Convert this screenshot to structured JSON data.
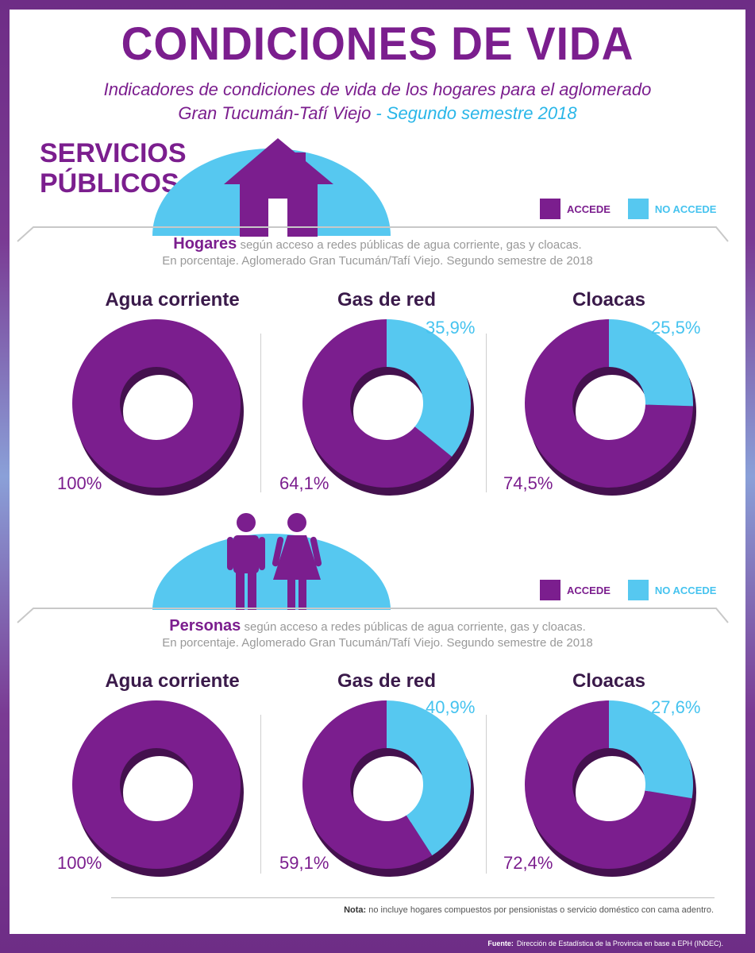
{
  "header": {
    "title": "CONDICIONES DE VIDA",
    "subtitle_line1": "Indicadores de condiciones de vida de los hogares para el aglomerado",
    "subtitle_line2_a": "Gran Tucumán-Tafí Viejo",
    "subtitle_line2_sep": " - ",
    "subtitle_line2_b": "Segundo semestre 2018"
  },
  "section": {
    "title_line1": "SERVICIOS",
    "title_line2": "PÚBLICOS"
  },
  "legend": {
    "accede": "ACCEDE",
    "no_accede": "NO ACCEDE"
  },
  "colors": {
    "accede": "#7b1e8e",
    "no_accede": "#56c8f0",
    "accent": "#7b1e8e"
  },
  "hogares": {
    "heading": "Hogares",
    "desc1": " según acceso a redes públicas de agua corriente, gas y cloacas.",
    "desc2": "En porcentaje. Aglomerado Gran Tucumán/Tafí Viejo. Segundo semestre de 2018"
  },
  "personas": {
    "heading": "Personas",
    "desc1": " según acceso a redes públicas de agua corriente, gas y cloacas.",
    "desc2": "En porcentaje. Aglomerado Gran Tucumán/Tafí Viejo. Segundo semestre de 2018"
  },
  "chart_data": [
    {
      "type": "pie",
      "group": "Hogares",
      "title": "Agua corriente",
      "categories": [
        "ACCEDE",
        "NO ACCEDE"
      ],
      "values": [
        100,
        0
      ],
      "labels": [
        "100%",
        ""
      ]
    },
    {
      "type": "pie",
      "group": "Hogares",
      "title": "Gas de red",
      "categories": [
        "ACCEDE",
        "NO ACCEDE"
      ],
      "values": [
        64.1,
        35.9
      ],
      "labels": [
        "64,1%",
        "35,9%"
      ]
    },
    {
      "type": "pie",
      "group": "Hogares",
      "title": "Cloacas",
      "categories": [
        "ACCEDE",
        "NO ACCEDE"
      ],
      "values": [
        74.5,
        25.5
      ],
      "labels": [
        "74,5%",
        "25,5%"
      ]
    },
    {
      "type": "pie",
      "group": "Personas",
      "title": "Agua corriente",
      "categories": [
        "ACCEDE",
        "NO ACCEDE"
      ],
      "values": [
        100,
        0
      ],
      "labels": [
        "100%",
        ""
      ]
    },
    {
      "type": "pie",
      "group": "Personas",
      "title": "Gas de red",
      "categories": [
        "ACCEDE",
        "NO ACCEDE"
      ],
      "values": [
        59.1,
        40.9
      ],
      "labels": [
        "59,1%",
        "40,9%"
      ]
    },
    {
      "type": "pie",
      "group": "Personas",
      "title": "Cloacas",
      "categories": [
        "ACCEDE",
        "NO ACCEDE"
      ],
      "values": [
        72.4,
        27.6
      ],
      "labels": [
        "72,4%",
        "27,6%"
      ]
    }
  ],
  "note": {
    "label": "Nota:",
    "text": " no incluye hogares compuestos por pensionistas o servicio doméstico con cama adentro."
  },
  "source": {
    "label": "Fuente:",
    "text": "Dirección de Estadística de la Provincia en base a EPH (INDEC)."
  }
}
